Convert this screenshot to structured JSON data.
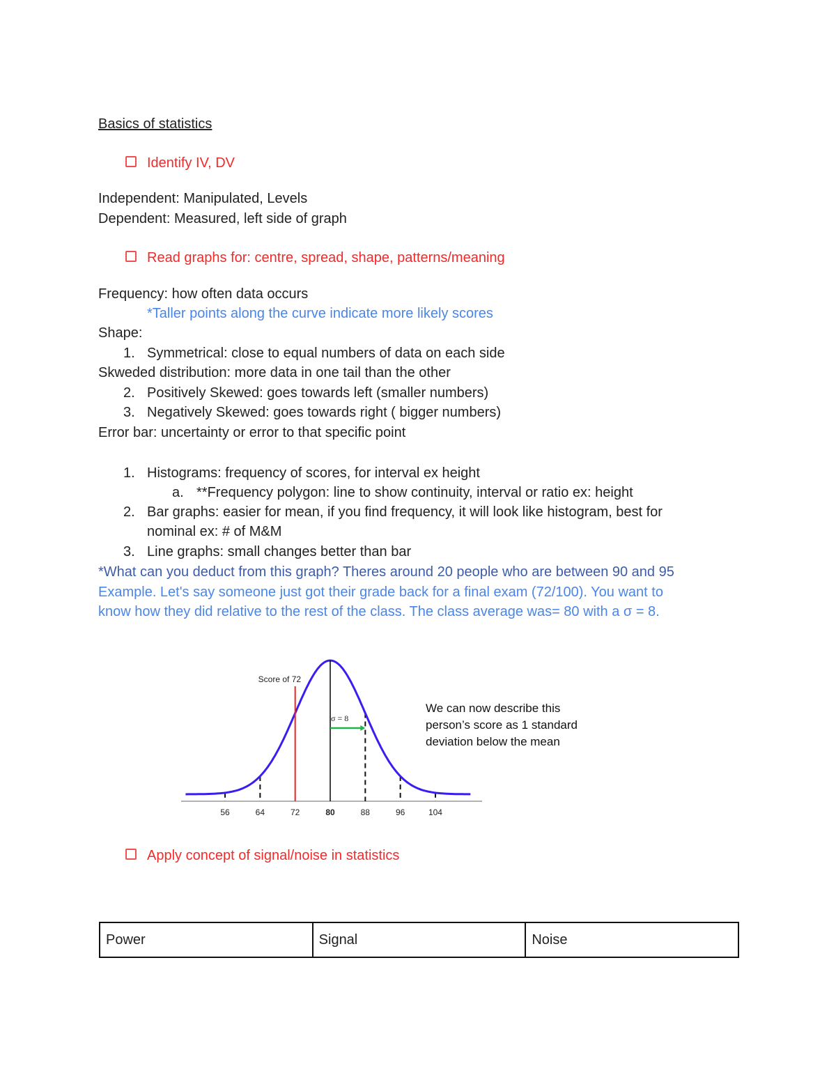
{
  "title": "Basics of statistics",
  "checklist": [
    "Identify IV, DV",
    "Read graphs for: centre, spread, shape, patterns/meaning",
    "Apply concept of signal/noise in statistics"
  ],
  "lines": {
    "independent": "Independent: Manipulated, Levels",
    "dependent": "Dependent: Measured, left side of graph",
    "frequency": "Frequency: how often data occurs",
    "taller": "*Taller points along the curve indicate more likely scores",
    "shape": "Shape:",
    "sym_num": "1.",
    "sym": "Symmetrical: close to equal numbers of data on each side",
    "skewed": "Skweded distribution: more data in one tail than the other",
    "pos_num": "2.",
    "pos": "Positively Skewed: goes towards left (smaller numbers)",
    "neg_num": "3.",
    "neg": "Negatively Skewed: goes towards right ( bigger numbers)",
    "error": "Error bar: uncertainty or error to that specific point",
    "hist_num": "1.",
    "hist": "Histograms: frequency of scores, for interval ex height",
    "poly_num": "a.",
    "poly": "**Frequency polygon: line to show continuity, interval or ratio ex: height",
    "bar_num": "2.",
    "bar1": "Bar graphs: easier for mean, if you find frequency, it will look like histogram, best for",
    "bar2": "nominal ex: # of M&M",
    "line_num": "3.",
    "line": "Line graphs: small changes better than bar",
    "deduct": "*What can you deduct from this graph? Theres around 20 people who are between 90 and 95",
    "example1": "Example. Let's say someone just got their grade back for a final exam (72/100). You want to",
    "example2": "know how they did relative to the rest of the class. The class average was= 80 with a σ = 8."
  },
  "chart_data": {
    "type": "line",
    "description_curve": "normal",
    "mean": 80,
    "sd": 8,
    "x_ticks": [
      "56",
      "64",
      "72",
      "80",
      "88",
      "96",
      "104"
    ],
    "x_tick_values": [
      56,
      64,
      72,
      80,
      88,
      96,
      104
    ],
    "xlim": [
      47,
      112
    ],
    "marked_score": 72,
    "marked_label": "Score of 72",
    "sigma_label": "σ = 8",
    "description": [
      "We can now describe this",
      "person’s score as 1 standard",
      "deviation below the mean"
    ],
    "colors": {
      "curve": "#3a1df0",
      "score_line": "#f22020",
      "arrow": "#1fb34a",
      "mean_line": "#000000"
    }
  },
  "table": {
    "cells": [
      "Power",
      "Signal",
      "Noise"
    ]
  }
}
